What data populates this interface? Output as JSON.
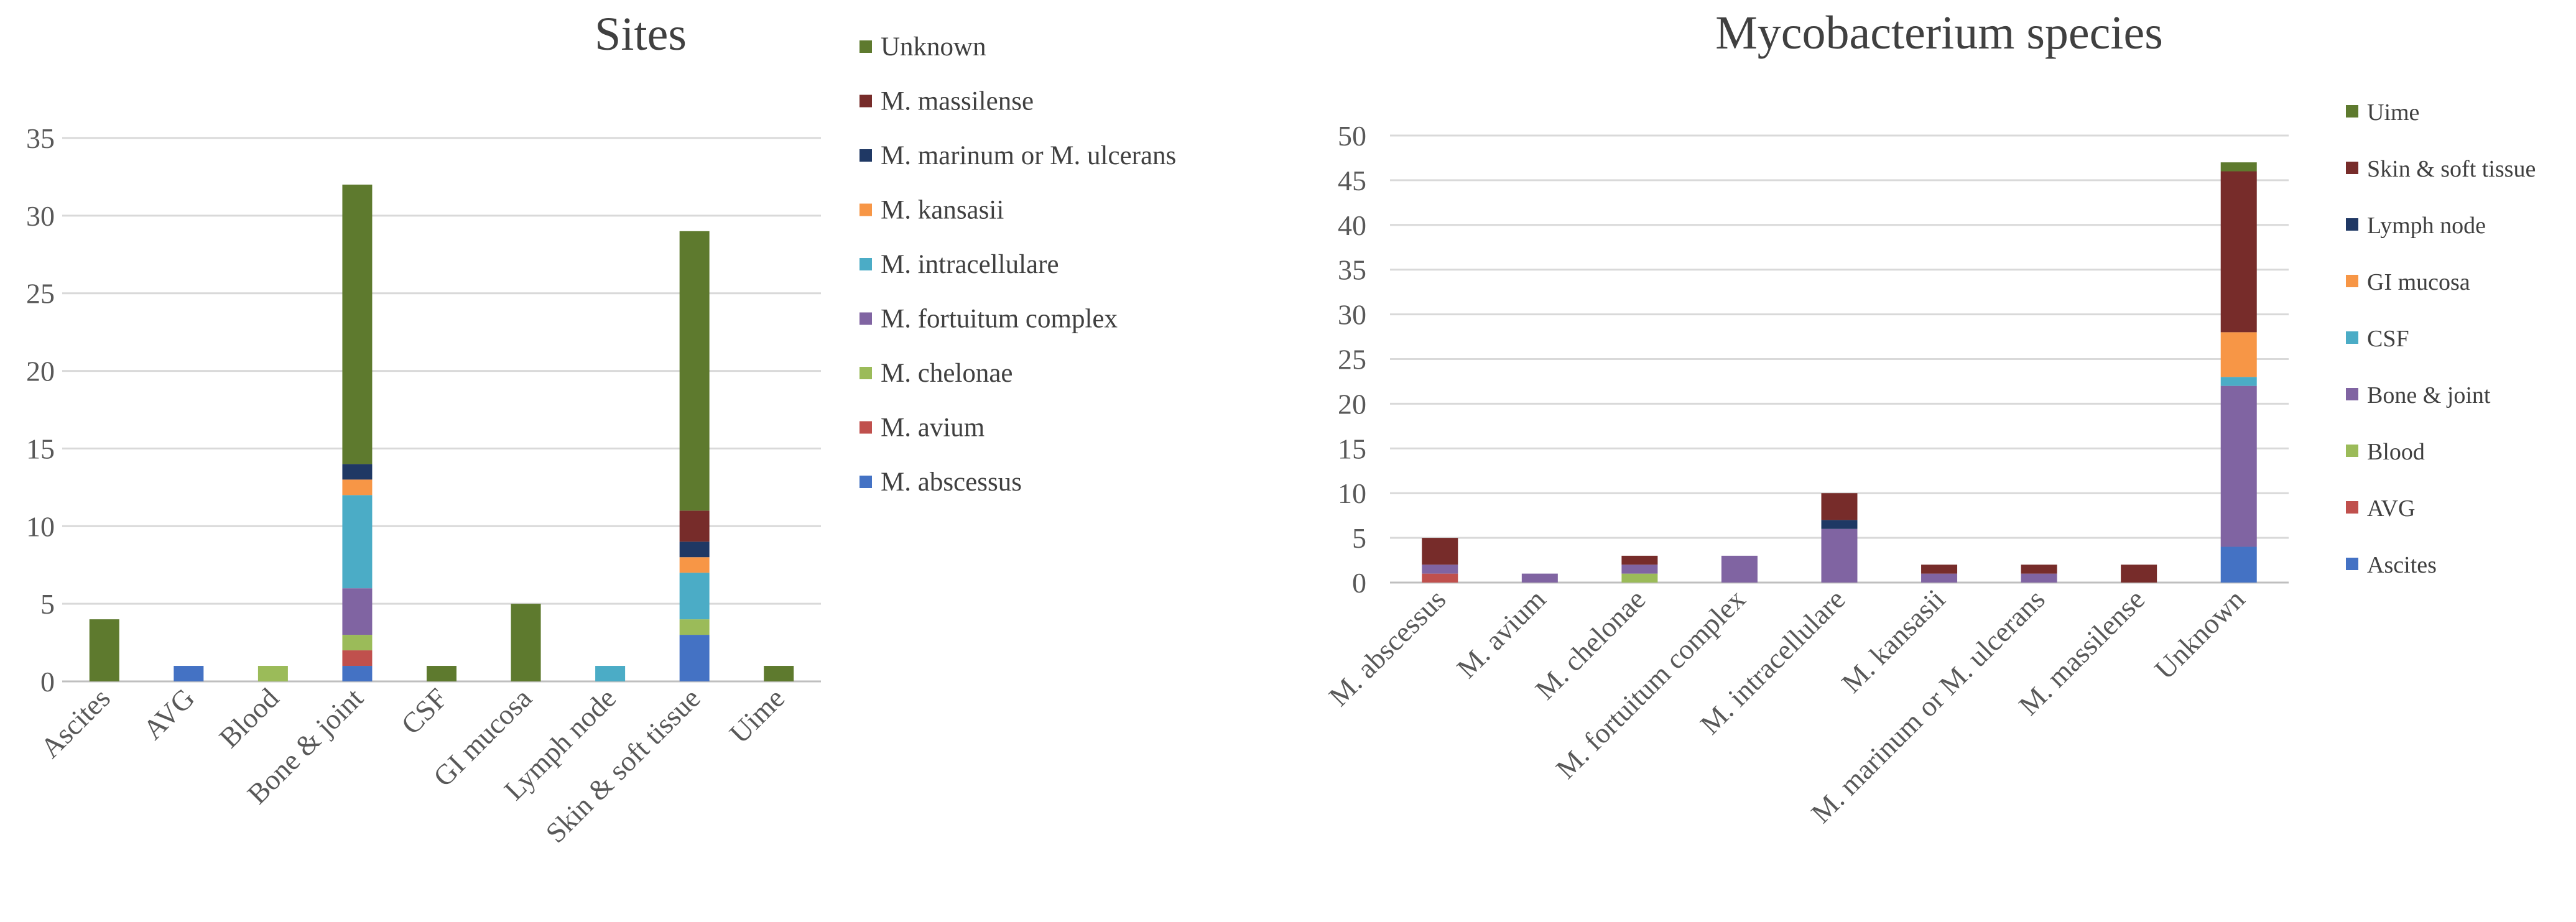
{
  "colors": {
    "Ascites": "#4472C4",
    "AVG": "#C0504D",
    "Blood": "#9BBB59",
    "Bone & joint": "#8064A2",
    "CSF": "#4BACC6",
    "GI mucosa": "#F79646",
    "Lymph node": "#1F3864",
    "Skin & soft tissue": "#772C2A",
    "Uime": "#5E7A2E",
    "M. abscessus": "#4472C4",
    "M. avium": "#C0504D",
    "M. chelonae": "#9BBB59",
    "M. fortuitum complex": "#8064A2",
    "M. intracellulare": "#4BACC6",
    "M. kansasii": "#F79646",
    "M. marinum or M. ulcerans": "#1F3864",
    "M. massilense": "#772C2A",
    "Unknown": "#5E7A2E"
  },
  "chart_data": [
    {
      "type": "bar",
      "stacked": true,
      "title": "Sites",
      "xlabel": "",
      "ylabel": "",
      "ylim": [
        0,
        35
      ],
      "yticks": [
        0,
        5,
        10,
        15,
        20,
        25,
        30,
        35
      ],
      "grid": true,
      "legend_position": "right",
      "categories": [
        "Ascites",
        "AVG",
        "Blood",
        "Bone & joint",
        "CSF",
        "GI mucosa",
        "Lymph node",
        "Skin & soft tissue",
        "Uime"
      ],
      "series": [
        {
          "name": "M. abscessus",
          "values": [
            0,
            1,
            0,
            1,
            0,
            0,
            0,
            3,
            0
          ]
        },
        {
          "name": "M. avium",
          "values": [
            0,
            0,
            0,
            1,
            0,
            0,
            0,
            0,
            0
          ]
        },
        {
          "name": "M. chelonae",
          "values": [
            0,
            0,
            1,
            1,
            0,
            0,
            0,
            1,
            0
          ]
        },
        {
          "name": "M. fortuitum complex",
          "values": [
            0,
            0,
            0,
            3,
            0,
            0,
            0,
            0,
            0
          ]
        },
        {
          "name": "M. intracellulare",
          "values": [
            0,
            0,
            0,
            6,
            0,
            0,
            1,
            3,
            0
          ]
        },
        {
          "name": "M. kansasii",
          "values": [
            0,
            0,
            0,
            1,
            0,
            0,
            0,
            1,
            0
          ]
        },
        {
          "name": "M. marinum or M. ulcerans",
          "values": [
            0,
            0,
            0,
            1,
            0,
            0,
            0,
            1,
            0
          ]
        },
        {
          "name": "M. massilense",
          "values": [
            0,
            0,
            0,
            0,
            0,
            0,
            0,
            2,
            0
          ]
        },
        {
          "name": "Unknown",
          "values": [
            4,
            0,
            0,
            18,
            1,
            5,
            0,
            18,
            1
          ]
        }
      ]
    },
    {
      "type": "bar",
      "stacked": true,
      "title": "Mycobacterium  species",
      "xlabel": "",
      "ylabel": "",
      "ylim": [
        0,
        50
      ],
      "yticks": [
        0,
        5,
        10,
        15,
        20,
        25,
        30,
        35,
        40,
        45,
        50
      ],
      "grid": true,
      "legend_position": "right",
      "categories": [
        "M. abscessus",
        "M. avium",
        "M. chelonae",
        "M. fortuitum complex",
        "M. intracellulare",
        "M. kansasii",
        "M. marinum or M. ulcerans",
        "M. massilense",
        "Unknown"
      ],
      "series": [
        {
          "name": "Ascites",
          "values": [
            0,
            0,
            0,
            0,
            0,
            0,
            0,
            0,
            4
          ]
        },
        {
          "name": "AVG",
          "values": [
            1,
            0,
            0,
            0,
            0,
            0,
            0,
            0,
            0
          ]
        },
        {
          "name": "Blood",
          "values": [
            0,
            0,
            1,
            0,
            0,
            0,
            0,
            0,
            0
          ]
        },
        {
          "name": "Bone & joint",
          "values": [
            1,
            1,
            1,
            3,
            6,
            1,
            1,
            0,
            18
          ]
        },
        {
          "name": "CSF",
          "values": [
            0,
            0,
            0,
            0,
            0,
            0,
            0,
            0,
            1
          ]
        },
        {
          "name": "GI mucosa",
          "values": [
            0,
            0,
            0,
            0,
            0,
            0,
            0,
            0,
            5
          ]
        },
        {
          "name": "Lymph node",
          "values": [
            0,
            0,
            0,
            0,
            1,
            0,
            0,
            0,
            0
          ]
        },
        {
          "name": "Skin & soft tissue",
          "values": [
            3,
            0,
            1,
            0,
            3,
            1,
            1,
            2,
            18
          ]
        },
        {
          "name": "Uime",
          "values": [
            0,
            0,
            0,
            0,
            0,
            0,
            0,
            0,
            1
          ]
        }
      ]
    }
  ]
}
